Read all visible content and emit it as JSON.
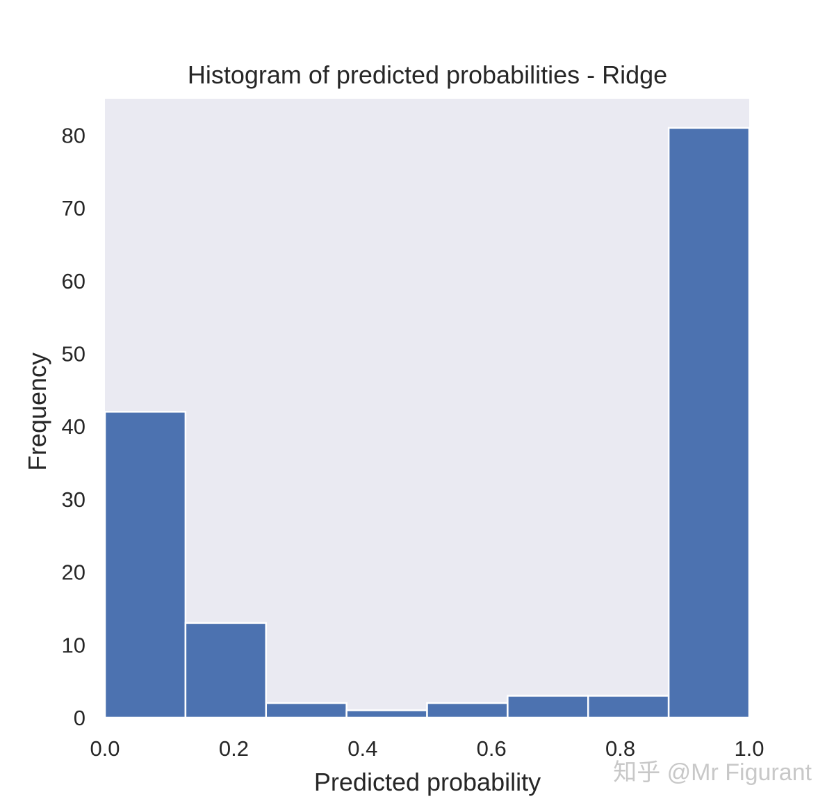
{
  "chart_data": {
    "type": "bar",
    "title": "Histogram of predicted probabilities - Ridge",
    "xlabel": "Predicted probability",
    "ylabel": "Frequency",
    "bin_edges": [
      0.0,
      0.125,
      0.25,
      0.375,
      0.5,
      0.625,
      0.75,
      0.875,
      1.0
    ],
    "values": [
      42,
      13,
      2,
      1,
      2,
      3,
      3,
      81
    ],
    "xlim": [
      0.0,
      1.0
    ],
    "ylim": [
      0,
      85
    ],
    "xticks": [
      "0.0",
      "0.2",
      "0.4",
      "0.6",
      "0.8",
      "1.0"
    ],
    "xtick_values": [
      0.0,
      0.2,
      0.4,
      0.6,
      0.8,
      1.0
    ],
    "yticks": [
      "0",
      "10",
      "20",
      "30",
      "40",
      "50",
      "60",
      "70",
      "80"
    ],
    "ytick_values": [
      0,
      10,
      20,
      30,
      40,
      50,
      60,
      70,
      80
    ],
    "grid": false,
    "bar_color": "#4c72b0",
    "background_color": "#eaeaf2"
  },
  "watermark": {
    "text": "知乎 @Mr Figurant"
  }
}
